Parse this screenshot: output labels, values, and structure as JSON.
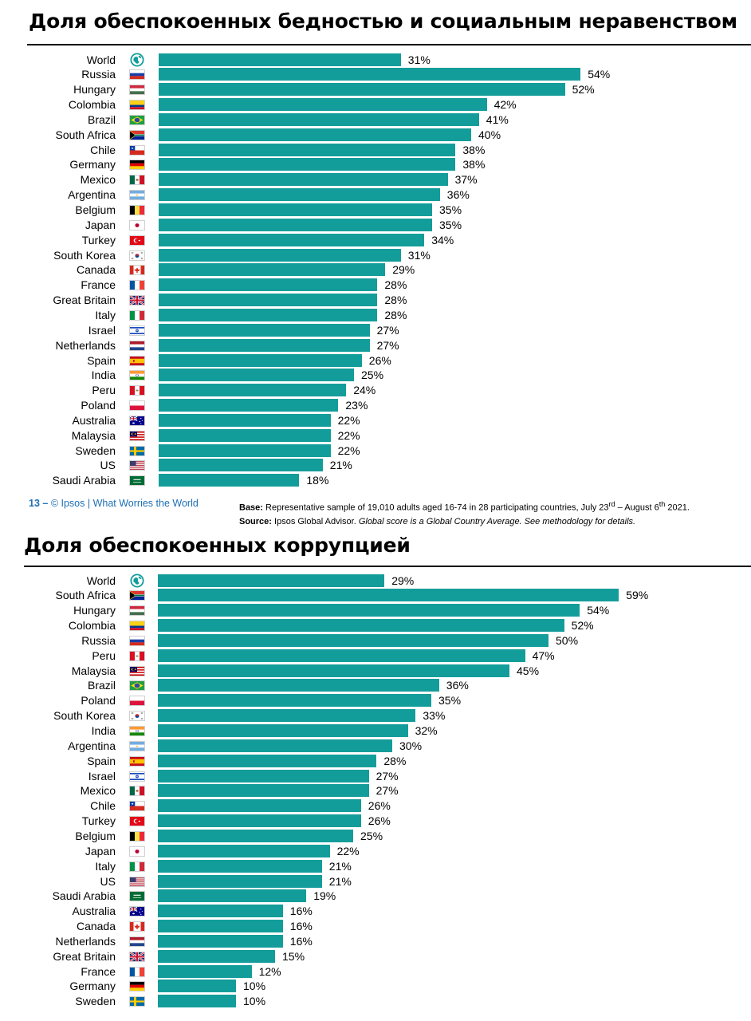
{
  "charts": [
    {
      "title": "Доля обеспокоенных бедностью и социальным неравенством",
      "chart_data": {
        "type": "bar",
        "orientation": "horizontal",
        "categories": [
          "World",
          "Russia",
          "Hungary",
          "Colombia",
          "Brazil",
          "South Africa",
          "Chile",
          "Germany",
          "Mexico",
          "Argentina",
          "Belgium",
          "Japan",
          "Turkey",
          "South Korea",
          "Canada",
          "France",
          "Great Britain",
          "Italy",
          "Israel",
          "Netherlands",
          "Spain",
          "India",
          "Peru",
          "Poland",
          "Australia",
          "Malaysia",
          "Sweden",
          "US",
          "Saudi Arabia"
        ],
        "values": [
          31,
          54,
          52,
          42,
          41,
          40,
          38,
          38,
          37,
          36,
          35,
          35,
          34,
          31,
          29,
          28,
          28,
          28,
          27,
          27,
          26,
          25,
          24,
          23,
          22,
          22,
          22,
          21,
          18
        ],
        "value_suffix": "%",
        "flags": [
          "globe-icon",
          "russia-flag-icon",
          "hungary-flag-icon",
          "colombia-flag-icon",
          "brazil-flag-icon",
          "south-africa-flag-icon",
          "chile-flag-icon",
          "germany-flag-icon",
          "mexico-flag-icon",
          "argentina-flag-icon",
          "belgium-flag-icon",
          "japan-flag-icon",
          "turkey-flag-icon",
          "south-korea-flag-icon",
          "canada-flag-icon",
          "france-flag-icon",
          "great-britain-flag-icon",
          "italy-flag-icon",
          "israel-flag-icon",
          "netherlands-flag-icon",
          "spain-flag-icon",
          "india-flag-icon",
          "peru-flag-icon",
          "poland-flag-icon",
          "australia-flag-icon",
          "malaysia-flag-icon",
          "sweden-flag-icon",
          "us-flag-icon",
          "saudi-arabia-flag-icon"
        ],
        "bar_color": "#139d9a",
        "grid": false,
        "legend": "none"
      }
    },
    {
      "title": "Доля обеспокоенных коррупцией",
      "chart_data": {
        "type": "bar",
        "orientation": "horizontal",
        "categories": [
          "World",
          "South Africa",
          "Hungary",
          "Colombia",
          "Russia",
          "Peru",
          "Malaysia",
          "Brazil",
          "Poland",
          "South Korea",
          "India",
          "Argentina",
          "Spain",
          "Israel",
          "Mexico",
          "Chile",
          "Turkey",
          "Belgium",
          "Japan",
          "Italy",
          "US",
          "Saudi Arabia",
          "Australia",
          "Canada",
          "Netherlands",
          "Great Britain",
          "France",
          "Germany",
          "Sweden"
        ],
        "values": [
          29,
          59,
          54,
          52,
          50,
          47,
          45,
          36,
          35,
          33,
          32,
          30,
          28,
          27,
          27,
          26,
          26,
          25,
          22,
          21,
          21,
          19,
          16,
          16,
          16,
          15,
          12,
          10,
          10
        ],
        "value_suffix": "%",
        "flags": [
          "globe-icon",
          "south-africa-flag-icon",
          "hungary-flag-icon",
          "colombia-flag-icon",
          "russia-flag-icon",
          "peru-flag-icon",
          "malaysia-flag-icon",
          "brazil-flag-icon",
          "poland-flag-icon",
          "south-korea-flag-icon",
          "india-flag-icon",
          "argentina-flag-icon",
          "spain-flag-icon",
          "israel-flag-icon",
          "mexico-flag-icon",
          "chile-flag-icon",
          "turkey-flag-icon",
          "belgium-flag-icon",
          "japan-flag-icon",
          "italy-flag-icon",
          "us-flag-icon",
          "saudi-arabia-flag-icon",
          "australia-flag-icon",
          "canada-flag-icon",
          "netherlands-flag-icon",
          "great-britain-flag-icon",
          "france-flag-icon",
          "germany-flag-icon",
          "sweden-flag-icon"
        ],
        "bar_color": "#139d9a",
        "grid": false,
        "legend": "none"
      }
    }
  ],
  "footer": {
    "page_number": "13 –",
    "copyright": "© Ipsos | What Worries the World",
    "base_label": "Base:",
    "base_text_pre": " Representative sample of 19,010 adults aged 16-74 in 28 participating countries, July 23",
    "base_sup1": "rd",
    "base_text_mid": " – August 6",
    "base_sup2": "th",
    "base_text_post": " 2021.",
    "source_label": "Source:",
    "source_text": " Ipsos Global Advisor. ",
    "source_italic": "Global score is a Global Country Average. See methodology for details."
  }
}
